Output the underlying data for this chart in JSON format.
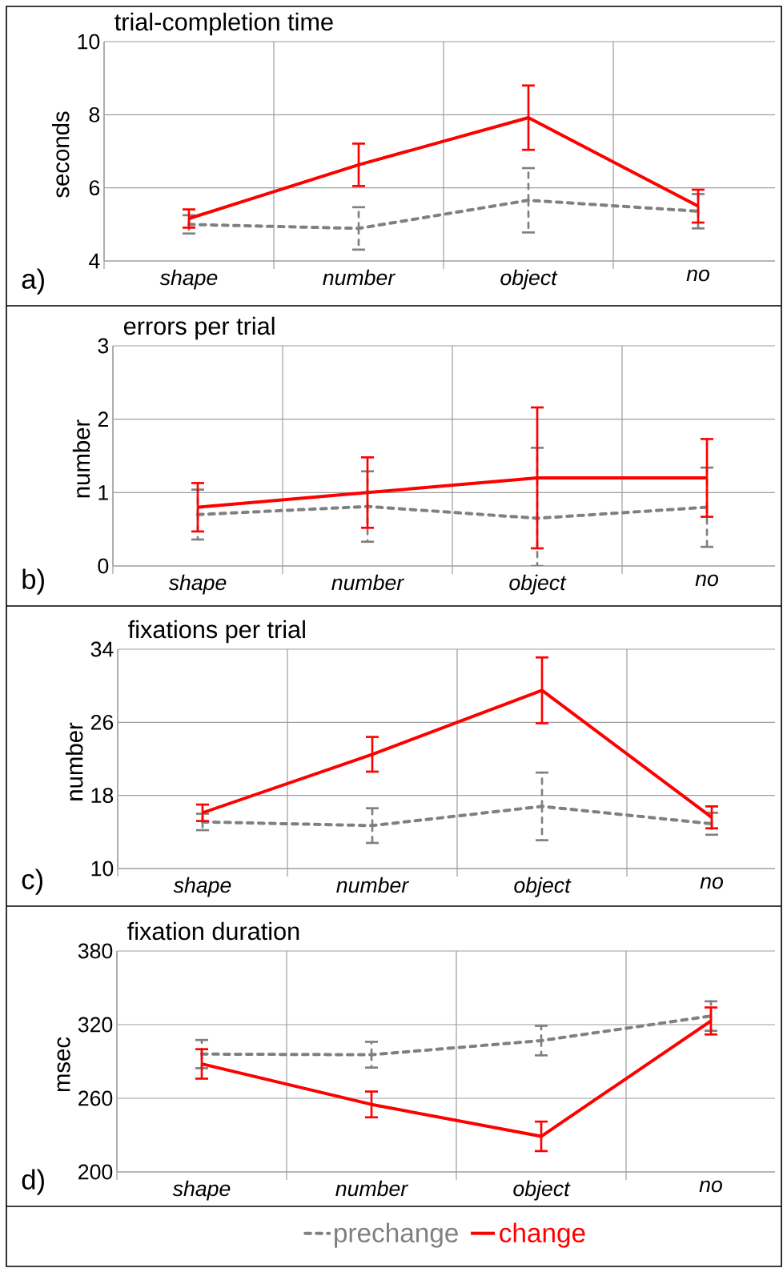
{
  "chart_data": [
    {
      "type": "line",
      "title": "trial-completion time",
      "ylabel": "seconds",
      "annotations": [
        "a)"
      ],
      "categories": [
        "shape",
        "number",
        "object",
        "no"
      ],
      "ylim": [
        4,
        10
      ],
      "yticks": [
        4,
        6,
        8,
        10
      ],
      "grid": true,
      "marker": "none",
      "series": [
        {
          "color": "#808080",
          "line_style": "dashed",
          "values": [
            5.0,
            4.89,
            5.66,
            5.36
          ],
          "errors": [
            0.25,
            0.58,
            0.88,
            0.47
          ]
        },
        {
          "color": "#ff0000",
          "line_style": "solid",
          "values": [
            5.16,
            6.63,
            7.92,
            5.5
          ],
          "errors": [
            0.25,
            0.58,
            0.88,
            0.45
          ]
        }
      ]
    },
    {
      "type": "line",
      "title": "errors per trial",
      "ylabel": "number",
      "annotations": [
        "b)"
      ],
      "categories": [
        "shape",
        "number",
        "object",
        "no"
      ],
      "ylim": [
        0,
        3
      ],
      "yticks": [
        0,
        1,
        2,
        3
      ],
      "grid": true,
      "marker": "none",
      "series": [
        {
          "color": "#808080",
          "line_style": "dashed",
          "values": [
            0.7,
            0.81,
            0.65,
            0.8
          ],
          "errors": [
            0.34,
            0.48,
            [
              0,
              1.61
            ],
            0.54
          ]
        },
        {
          "color": "#ff0000",
          "line_style": "solid",
          "values": [
            0.8,
            1.0,
            1.2,
            1.2
          ],
          "errors": [
            0.33,
            0.48,
            0.96,
            0.53
          ]
        }
      ]
    },
    {
      "type": "line",
      "title": "fixations per trial",
      "ylabel": "number",
      "annotations": [
        "c)"
      ],
      "categories": [
        "shape",
        "number",
        "object",
        "no"
      ],
      "ylim": [
        10,
        34
      ],
      "yticks": [
        10,
        18,
        26,
        34
      ],
      "grid": true,
      "marker": "none",
      "series": [
        {
          "color": "#808080",
          "line_style": "dashed",
          "values": [
            15.1,
            14.7,
            16.8,
            14.9
          ],
          "errors": [
            0.9,
            1.9,
            3.7,
            1.2
          ]
        },
        {
          "color": "#ff0000",
          "line_style": "solid",
          "values": [
            16.1,
            22.5,
            29.5,
            15.6
          ],
          "errors": [
            0.9,
            1.9,
            3.6,
            1.2
          ]
        }
      ]
    },
    {
      "type": "line",
      "title": "fixation duration",
      "ylabel": "msec",
      "annotations": [
        "d)"
      ],
      "categories": [
        "shape",
        "number",
        "object",
        "no"
      ],
      "ylim": [
        200,
        380
      ],
      "yticks": [
        200,
        260,
        320,
        380
      ],
      "grid": true,
      "marker": "none",
      "legend": "bottom",
      "series": [
        {
          "name": "prechange",
          "color": "#808080",
          "line_style": "dashed",
          "values": [
            296,
            295.5,
            307,
            327
          ],
          "errors": [
            11.5,
            10.5,
            12,
            12
          ]
        },
        {
          "name": "change",
          "color": "#ff0000",
          "line_style": "solid",
          "values": [
            288,
            255,
            229,
            323
          ],
          "errors": [
            12,
            10.5,
            12,
            11
          ]
        }
      ]
    }
  ]
}
